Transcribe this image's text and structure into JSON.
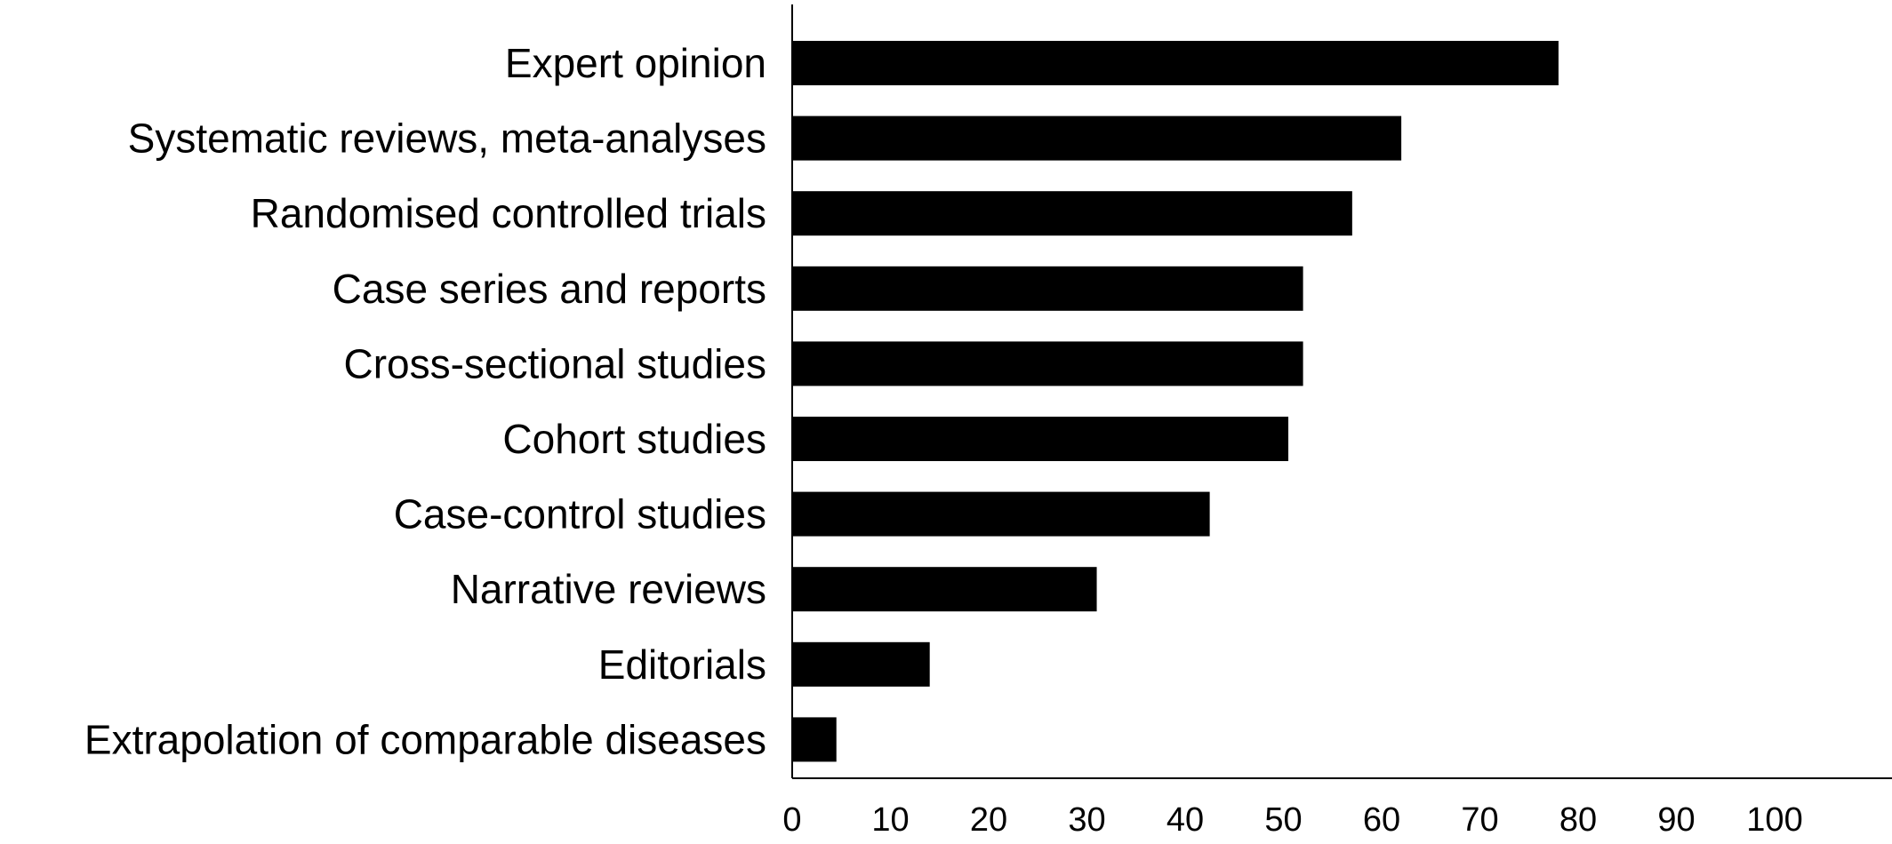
{
  "chart_data": {
    "type": "bar",
    "orientation": "horizontal",
    "categories": [
      "Expert opinion",
      "Systematic reviews, meta-analyses",
      "Randomised controlled trials",
      "Case series and reports",
      "Cross-sectional studies",
      "Cohort studies",
      "Case-control studies",
      "Narrative reviews",
      "Editorials",
      "Extrapolation of comparable diseases"
    ],
    "values": [
      78,
      62,
      57,
      52,
      52,
      50.5,
      42.5,
      31,
      14,
      4.5
    ],
    "xticks": [
      "0",
      "10",
      "20",
      "30",
      "40",
      "50",
      "60",
      "70",
      "80",
      "90",
      "100"
    ],
    "xlim": [
      0,
      112
    ],
    "title": "",
    "xlabel": "",
    "ylabel": "",
    "grid": false,
    "bar_color": "#000000"
  }
}
